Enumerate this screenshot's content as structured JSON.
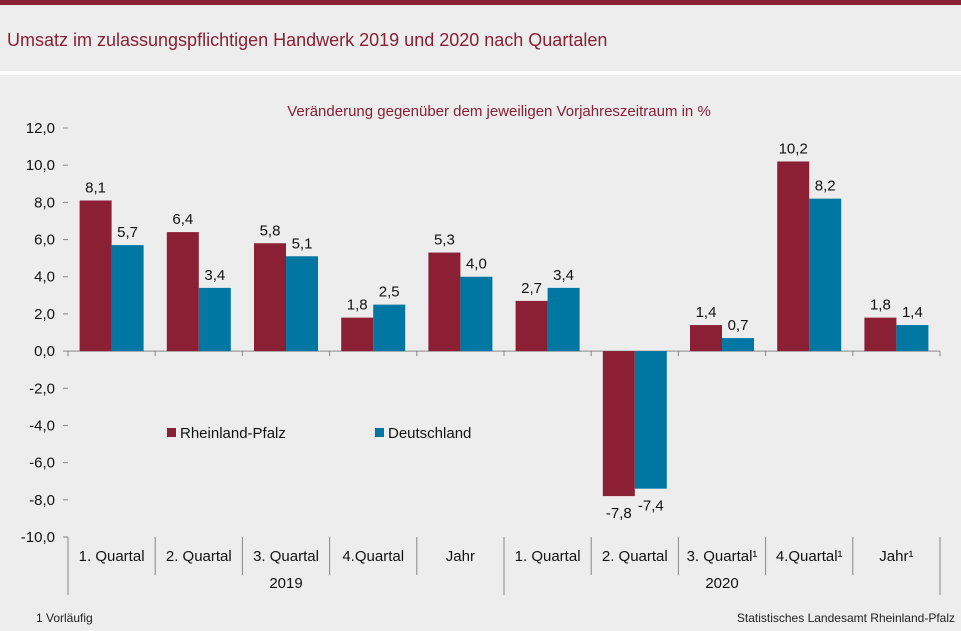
{
  "title": "Umsatz im zulassungspflichtigen Handwerk 2019 und 2020 nach Quartalen",
  "footnote_left": "1 Vorläufig",
  "footnote_right": "Statistisches Landesamt  Rheinland-Pfalz",
  "colors": {
    "accent": "#8b1f34",
    "series1": "#8b1f34",
    "series2": "#0076a3"
  },
  "chart_data": {
    "type": "bar",
    "subtitle": "Veränderung  gegenüber  dem jeweiligen  Vorjahreszeitraum  in %",
    "categories": [
      "1. Quartal",
      "2. Quartal",
      "3. Quartal",
      "4.Quartal",
      "Jahr",
      "1. Quartal",
      "2. Quartal",
      "3. Quartal¹",
      "4.Quartal¹",
      "Jahr¹"
    ],
    "groups": [
      {
        "label": "2019",
        "categories": 5
      },
      {
        "label": "2020",
        "categories": 5
      }
    ],
    "series": [
      {
        "name": "Rheinland-Pfalz",
        "color": "#8b1f34",
        "values": [
          8.1,
          6.4,
          5.8,
          1.8,
          5.3,
          2.7,
          -7.8,
          1.4,
          10.2,
          1.8
        ]
      },
      {
        "name": "Deutschland",
        "color": "#0076a3",
        "values": [
          5.7,
          3.4,
          5.1,
          2.5,
          4.0,
          3.4,
          -7.4,
          0.7,
          8.2,
          1.4
        ]
      }
    ],
    "ylim": [
      -10,
      12
    ],
    "yticks": [
      "-10,0",
      "-8,0",
      "-6,0",
      "-4,0",
      "-2,0",
      "0,0",
      "2,0",
      "4,0",
      "6,0",
      "8,0",
      "10,0",
      "12,0"
    ],
    "grid": false,
    "legend": "inside-left"
  }
}
